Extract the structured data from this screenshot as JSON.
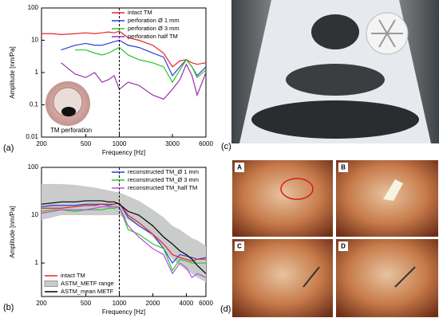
{
  "chart_data": [
    {
      "type": "line",
      "label": "(a)",
      "xlabel": "Frequency [Hz]",
      "ylabel": "Amplitude [nm/Pa]",
      "annotation": "TM perforation",
      "xlog": true,
      "ylog": true,
      "vline": 1000,
      "legend": "upper right",
      "xlim": [
        200,
        6000
      ],
      "xticks": [
        200,
        500,
        1000,
        3000,
        6000
      ],
      "ylim": [
        0.01,
        100
      ],
      "yticks": [
        0.01,
        0.1,
        1,
        10,
        100
      ],
      "x": [
        200,
        250,
        300,
        400,
        500,
        600,
        700,
        800,
        900,
        1000,
        1200,
        1500,
        2000,
        2500,
        3000,
        3500,
        4000,
        4500,
        5000,
        6000
      ],
      "series": [
        {
          "name": "intact TM",
          "color": "#e8262b",
          "values": [
            16,
            16,
            15,
            16,
            17,
            16,
            17,
            18,
            17,
            19,
            12,
            10,
            7,
            4,
            1.5,
            2.3,
            2.5,
            2,
            1.8,
            2
          ]
        },
        {
          "name": "perforation Ø 1 mm",
          "color": "#2b3fd6",
          "values": [
            null,
            null,
            5,
            7,
            8,
            7,
            7,
            8,
            9,
            10,
            7,
            6,
            4,
            3,
            0.8,
            1.5,
            2.5,
            1.5,
            0.8,
            1.5
          ]
        },
        {
          "name": "perforation Ø 3 mm",
          "color": "#2bc42b",
          "values": [
            null,
            null,
            null,
            5,
            5,
            4,
            3.5,
            4,
            5,
            6,
            3.5,
            2.5,
            2,
            1.5,
            0.5,
            1.2,
            2.5,
            1.5,
            0.7,
            1.2
          ]
        },
        {
          "name": "perforation half TM",
          "color": "#9b2fae",
          "values": [
            null,
            null,
            2,
            0.9,
            0.7,
            1,
            0.5,
            0.6,
            0.8,
            0.3,
            0.5,
            0.4,
            0.2,
            0.15,
            0.3,
            0.6,
            1.8,
            0.8,
            0.2,
            1
          ]
        }
      ]
    },
    {
      "type": "line",
      "label": "(b)",
      "xlabel": "Frequency [Hz]",
      "ylabel": "Amplitude [nm/Pa]",
      "xlog": true,
      "ylog": true,
      "vline": 1000,
      "legend": "upper right",
      "xlim": [
        200,
        6000
      ],
      "xticks": [
        200,
        500,
        1000,
        2000,
        4000,
        6000
      ],
      "ylim": [
        0.2,
        100
      ],
      "yticks": [
        1,
        10,
        100
      ],
      "x": [
        200,
        250,
        300,
        400,
        500,
        600,
        700,
        800,
        900,
        1000,
        1200,
        1500,
        2000,
        2500,
        3000,
        3500,
        4000,
        4500,
        5000,
        6000
      ],
      "series": [
        {
          "name": "reconstructed TM_Ø 1 mm",
          "color": "#2b3fd6",
          "values": [
            15,
            16,
            16,
            16,
            17,
            17,
            17,
            16,
            17,
            18,
            9,
            6,
            4,
            2,
            1,
            1.5,
            1.4,
            1.3,
            1.2,
            1.3
          ]
        },
        {
          "name": "reconstructed TM_Ø 3 mm",
          "color": "#2bc42b",
          "values": [
            12,
            13,
            13,
            12,
            13,
            13,
            13,
            14,
            14,
            15,
            5,
            4,
            2.5,
            2,
            0.7,
            1.2,
            1.1,
            1,
            1,
            1
          ]
        },
        {
          "name": "reconstructed TM_half TM",
          "color": "#b44fe0",
          "values": [
            11,
            12,
            13,
            13,
            13,
            14,
            15,
            15,
            15,
            15,
            6,
            3.5,
            2,
            1.5,
            0.6,
            1,
            0.8,
            0.5,
            0.6,
            0.5
          ]
        },
        {
          "name": "intact TM",
          "color": "#e8262b",
          "legend": "lower left",
          "values": [
            14,
            14,
            14,
            15,
            16,
            16,
            17,
            17,
            17,
            18,
            10,
            7,
            4,
            2.5,
            1.5,
            1.3,
            1.2,
            1.1,
            1.2,
            1.2
          ]
        },
        {
          "name": "ASTM_METF range",
          "color": "#c9cccb",
          "legend": "lower left",
          "low": [
            8,
            9,
            10,
            10,
            10,
            10,
            10,
            10,
            10,
            10,
            8,
            6,
            3.5,
            2,
            1.2,
            0.9,
            0.7,
            0.6,
            0.5,
            0.4
          ],
          "high": [
            45,
            45,
            45,
            43,
            40,
            38,
            35,
            33,
            31,
            30,
            25,
            20,
            13,
            9,
            6,
            5,
            4,
            3.3,
            3,
            2.3
          ]
        },
        {
          "name": "ASTM_mean METF",
          "color": "#000000",
          "legend": "lower left",
          "values": [
            17,
            18,
            19,
            19,
            20,
            20,
            20,
            19,
            19,
            17,
            12,
            10,
            6,
            3.5,
            2.5,
            1.8,
            1.5,
            1.2,
            0.9,
            0.6
          ]
        }
      ]
    }
  ],
  "panels": {
    "c": {
      "label": "(c)"
    },
    "d": {
      "label": "(d)",
      "subpanels": [
        "A",
        "B",
        "C",
        "D"
      ]
    }
  }
}
